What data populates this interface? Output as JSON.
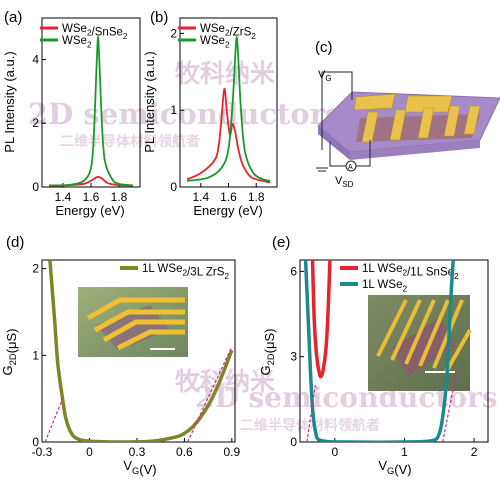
{
  "watermark": {
    "chinese_top": "牧科纳米",
    "english": "2D semiconductors",
    "chinese_bottom": "二维半导体材料领航者",
    "color": "#d9c3d6"
  },
  "panels": {
    "a": {
      "tag": "(a)"
    },
    "b": {
      "tag": "(b)"
    },
    "c": {
      "tag": "(c)",
      "vg": "V",
      "vg_sub": "G",
      "vsd": "V",
      "vsd_sub": "SD",
      "ammeter": "A"
    },
    "d": {
      "tag": "(d)"
    },
    "e": {
      "tag": "(e)"
    }
  },
  "chart_data": [
    {
      "panel": "a",
      "type": "line",
      "xlabel": "Energy (eV)",
      "ylabel": "PL Intensity (a.u.)",
      "xlim": [
        1.25,
        1.95
      ],
      "ylim": [
        0,
        5.3
      ],
      "xticks": [
        1.4,
        1.6,
        1.8
      ],
      "yticks": [
        0,
        2,
        4
      ],
      "legend": "top",
      "series": [
        {
          "name": "WSe2/SnSe2",
          "color": "#e8232a",
          "x": [
            1.3,
            1.45,
            1.55,
            1.6,
            1.63,
            1.65,
            1.68,
            1.72,
            1.8,
            1.9
          ],
          "y": [
            0.05,
            0.06,
            0.1,
            0.2,
            0.28,
            0.32,
            0.26,
            0.12,
            0.06,
            0.05
          ]
        },
        {
          "name": "WSe2",
          "color": "#1a9a2d",
          "x": [
            1.3,
            1.45,
            1.55,
            1.6,
            1.62,
            1.64,
            1.65,
            1.66,
            1.68,
            1.7,
            1.75,
            1.8,
            1.9
          ],
          "y": [
            0.05,
            0.07,
            0.2,
            0.6,
            1.6,
            3.8,
            4.7,
            3.9,
            1.8,
            0.8,
            0.25,
            0.1,
            0.05
          ]
        }
      ]
    },
    {
      "panel": "b",
      "type": "line",
      "xlabel": "Energy (eV)",
      "ylabel": "PL Intensity (a.u.)",
      "xlim": [
        1.25,
        1.95
      ],
      "ylim": [
        0,
        2.2
      ],
      "xticks": [
        1.4,
        1.6,
        1.8
      ],
      "yticks": [
        0,
        1,
        2
      ],
      "legend": "top",
      "series": [
        {
          "name": "WSe2/ZrS2",
          "color": "#e8232a",
          "x": [
            1.3,
            1.4,
            1.5,
            1.53,
            1.55,
            1.57,
            1.59,
            1.61,
            1.63,
            1.65,
            1.67,
            1.7,
            1.75,
            1.8,
            1.9
          ],
          "y": [
            0.1,
            0.18,
            0.35,
            0.55,
            0.9,
            1.28,
            0.95,
            0.68,
            0.82,
            0.7,
            0.5,
            0.3,
            0.15,
            0.1,
            0.06
          ]
        },
        {
          "name": "WSe2",
          "color": "#1a9a2d",
          "x": [
            1.3,
            1.45,
            1.55,
            1.6,
            1.63,
            1.65,
            1.66,
            1.67,
            1.69,
            1.72,
            1.78,
            1.85,
            1.9
          ],
          "y": [
            0.08,
            0.12,
            0.25,
            0.5,
            1.1,
            1.75,
            1.95,
            1.7,
            1.0,
            0.45,
            0.18,
            0.1,
            0.08
          ]
        }
      ]
    },
    {
      "panel": "d",
      "type": "line",
      "xlabel": "V_G(V)",
      "ylabel": "G_2D(μS)",
      "xlim": [
        -0.3,
        0.92
      ],
      "ylim": [
        0,
        2.1
      ],
      "xticks": [
        -0.3,
        0.0,
        0.3,
        0.6,
        0.9
      ],
      "yticks": [
        0,
        1,
        2
      ],
      "legend": "top-right",
      "series": [
        {
          "name": "1L WSe2/3L ZrS2",
          "color": "#7f8424",
          "x": [
            -0.25,
            -0.22,
            -0.2,
            -0.17,
            -0.15,
            -0.12,
            -0.08,
            0.0,
            0.2,
            0.4,
            0.55,
            0.6,
            0.65,
            0.7,
            0.75,
            0.8,
            0.85,
            0.9
          ],
          "y": [
            2.1,
            1.4,
            0.9,
            0.5,
            0.28,
            0.12,
            0.04,
            0.01,
            0.0,
            0.01,
            0.06,
            0.1,
            0.17,
            0.28,
            0.42,
            0.6,
            0.82,
            1.06
          ]
        },
        {
          "name": "",
          "color": "#d4278b",
          "style": "dashed",
          "x": [
            -0.28,
            -0.17
          ],
          "y": [
            0,
            0.5
          ]
        },
        {
          "name": "",
          "color": "#d4278b",
          "style": "dashed",
          "x": [
            0.62,
            0.9
          ],
          "y": [
            0,
            1.1
          ]
        }
      ]
    },
    {
      "panel": "e",
      "type": "line",
      "xlabel": "V_G(V)",
      "ylabel": "G_2D(μS)",
      "xlim": [
        -0.5,
        2.2
      ],
      "ylim": [
        0,
        6.4
      ],
      "xticks": [
        0,
        1,
        2
      ],
      "yticks": [
        0,
        3,
        6
      ],
      "legend": "top-right",
      "series": [
        {
          "name": "1L WSe2/1L SnSe2",
          "color": "#e8232a",
          "x": [
            -0.32,
            -0.3,
            -0.28,
            -0.25,
            -0.22,
            -0.2,
            -0.17,
            -0.13,
            -0.1,
            -0.07
          ],
          "y": [
            6.4,
            4.6,
            3.6,
            2.8,
            2.4,
            2.3,
            2.5,
            3.2,
            4.4,
            6.4
          ]
        },
        {
          "name": "1L WSe2",
          "color": "#1a8a8a",
          "x": [
            -0.42,
            -0.38,
            -0.35,
            -0.32,
            -0.28,
            -0.2,
            0.2,
            1.0,
            1.4,
            1.5,
            1.55,
            1.6,
            1.63,
            1.66,
            1.7
          ],
          "y": [
            6.4,
            4.2,
            2.5,
            1.2,
            0.4,
            0.05,
            0.0,
            0.0,
            0.05,
            0.3,
            0.9,
            2.0,
            3.2,
            4.8,
            6.4
          ]
        },
        {
          "name": "",
          "color": "#d4278b",
          "style": "dashed",
          "x": [
            -0.4,
            -0.28
          ],
          "y": [
            0,
            2.0
          ]
        },
        {
          "name": "",
          "color": "#d4278b",
          "style": "dashed",
          "x": [
            1.55,
            1.75
          ],
          "y": [
            0,
            2.5
          ]
        }
      ]
    }
  ]
}
